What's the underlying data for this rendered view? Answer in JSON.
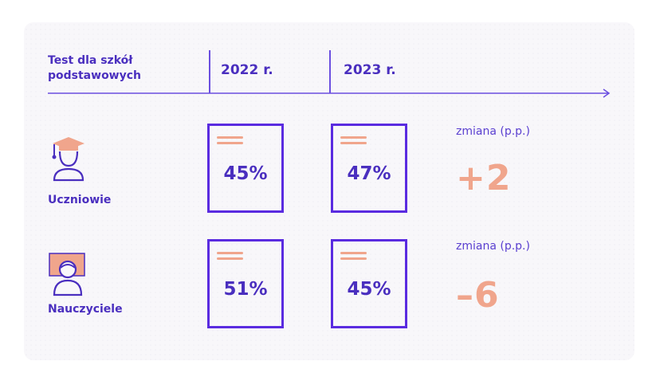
{
  "header": {
    "label": "Test dla szkół podstawowych",
    "year_1": "2022 r.",
    "year_2": "2023 r."
  },
  "rows": [
    {
      "label": "Uczniowie",
      "icon": "graduate-student-icon",
      "values": [
        "45%",
        "47%"
      ],
      "change_label": "zmiana (p.p.)",
      "change_value": "+2"
    },
    {
      "label": "Nauczyciele",
      "icon": "teacher-icon",
      "values": [
        "51%",
        "45%"
      ],
      "change_label": "zmiana (p.p.)",
      "change_value": "–6"
    }
  ],
  "colors": {
    "accent": "#5a2be0",
    "text": "#4a2fbf",
    "highlight": "#f0a58c",
    "background": "#f8f7fa"
  }
}
